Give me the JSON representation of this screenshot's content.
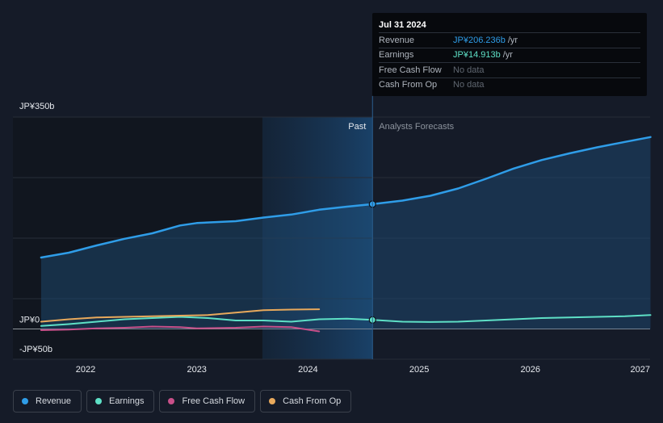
{
  "tooltip": {
    "date": "Jul 31 2024",
    "rows": [
      {
        "label": "Revenue",
        "value": "JP¥206.236b",
        "unit": "/yr"
      },
      {
        "label": "Earnings",
        "value": "JP¥14.913b",
        "unit": "/yr"
      },
      {
        "label": "Free Cash Flow",
        "value": "No data"
      },
      {
        "label": "Cash From Op",
        "value": "No data"
      }
    ]
  },
  "legend": [
    {
      "label": "Revenue",
      "color": "#2f9de8"
    },
    {
      "label": "Earnings",
      "color": "#5ee0c6"
    },
    {
      "label": "Free Cash Flow",
      "color": "#c8508a"
    },
    {
      "label": "Cash From Op",
      "color": "#e8a95c"
    }
  ],
  "chart_data": {
    "type": "line",
    "title": "",
    "y_tick_labels": [
      "JP¥350b",
      "JP¥0",
      "-JP¥50b"
    ],
    "ylim": [
      -50,
      350
    ],
    "xlim": [
      2021.6,
      2027.08
    ],
    "x_ticks": [
      2022,
      2023,
      2024,
      2025,
      2026,
      2027
    ],
    "x_tick_labels": [
      "2022",
      "2023",
      "2024",
      "2025",
      "2026",
      "2027"
    ],
    "past_label": "Past",
    "forecast_label": "Analysts Forecasts",
    "past_start": 2023.59,
    "divider": 2024.58,
    "series": [
      {
        "name": "Revenue",
        "color": "#2f9de8",
        "points": [
          [
            2021.6,
            118
          ],
          [
            2021.85,
            126
          ],
          [
            2022.1,
            138
          ],
          [
            2022.35,
            149
          ],
          [
            2022.6,
            158
          ],
          [
            2022.85,
            171
          ],
          [
            2023.0,
            175
          ],
          [
            2023.35,
            178
          ],
          [
            2023.6,
            184
          ],
          [
            2023.85,
            189
          ],
          [
            2024.1,
            197
          ],
          [
            2024.35,
            202
          ],
          [
            2024.58,
            206.2
          ],
          [
            2024.85,
            212
          ],
          [
            2025.1,
            220
          ],
          [
            2025.35,
            232
          ],
          [
            2025.6,
            248
          ],
          [
            2025.85,
            265
          ],
          [
            2026.1,
            279
          ],
          [
            2026.35,
            290
          ],
          [
            2026.6,
            300
          ],
          [
            2026.85,
            309
          ],
          [
            2027.08,
            317
          ]
        ]
      },
      {
        "name": "Earnings",
        "color": "#5ee0c6",
        "points": [
          [
            2021.6,
            5
          ],
          [
            2021.85,
            8
          ],
          [
            2022.1,
            12
          ],
          [
            2022.35,
            16
          ],
          [
            2022.6,
            18
          ],
          [
            2022.85,
            20
          ],
          [
            2023.1,
            18
          ],
          [
            2023.35,
            14
          ],
          [
            2023.6,
            14
          ],
          [
            2023.85,
            12
          ],
          [
            2024.1,
            16
          ],
          [
            2024.35,
            17
          ],
          [
            2024.58,
            14.9
          ],
          [
            2024.85,
            12
          ],
          [
            2025.1,
            11.5
          ],
          [
            2025.35,
            12
          ],
          [
            2025.6,
            14
          ],
          [
            2025.85,
            16
          ],
          [
            2026.1,
            18
          ],
          [
            2026.35,
            19
          ],
          [
            2026.6,
            20
          ],
          [
            2026.85,
            21
          ],
          [
            2027.08,
            23
          ]
        ]
      },
      {
        "name": "Free Cash Flow",
        "color": "#c8508a",
        "points": [
          [
            2021.6,
            -2
          ],
          [
            2021.85,
            -1
          ],
          [
            2022.1,
            1
          ],
          [
            2022.35,
            2
          ],
          [
            2022.6,
            4
          ],
          [
            2022.85,
            3
          ],
          [
            2023.0,
            1
          ],
          [
            2023.35,
            2
          ],
          [
            2023.6,
            4
          ],
          [
            2023.85,
            3
          ],
          [
            2024.1,
            -4
          ]
        ]
      },
      {
        "name": "Cash From Op",
        "color": "#e8a95c",
        "points": [
          [
            2021.6,
            12
          ],
          [
            2021.85,
            16
          ],
          [
            2022.1,
            19
          ],
          [
            2022.35,
            20
          ],
          [
            2022.6,
            21
          ],
          [
            2022.85,
            22
          ],
          [
            2023.1,
            23
          ],
          [
            2023.35,
            27
          ],
          [
            2023.6,
            31
          ],
          [
            2023.85,
            32
          ],
          [
            2024.1,
            32.5
          ]
        ]
      }
    ],
    "markers": [
      {
        "series": "Revenue",
        "x": 2024.58,
        "y": 206.2
      },
      {
        "series": "Earnings",
        "x": 2024.58,
        "y": 14.9
      }
    ]
  }
}
